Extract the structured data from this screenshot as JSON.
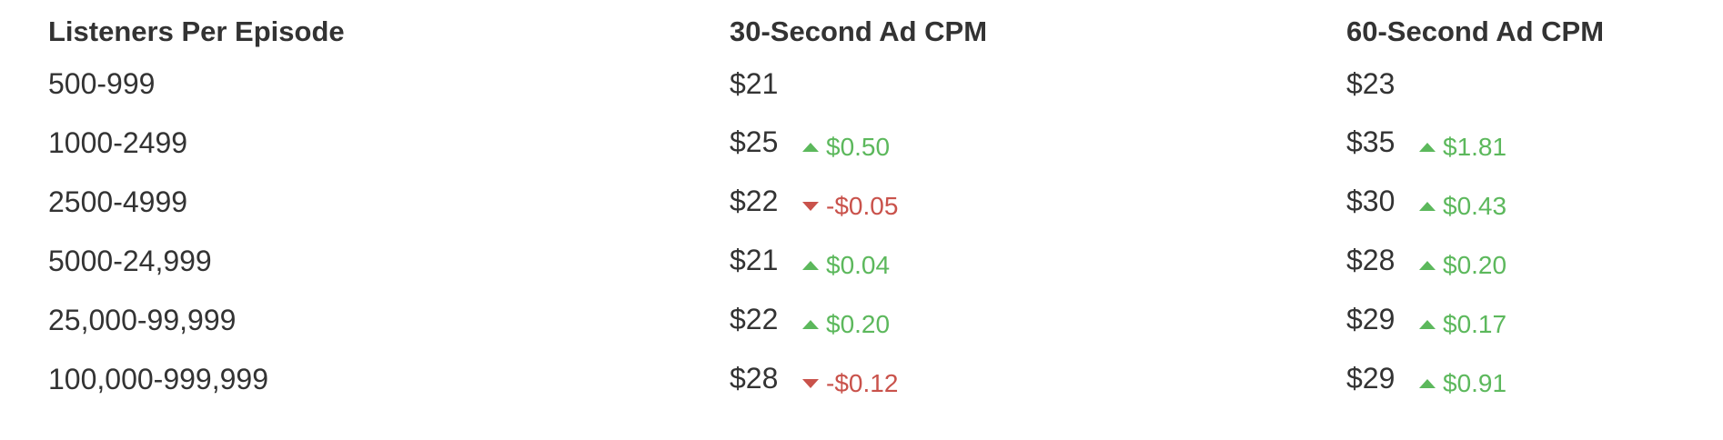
{
  "table": {
    "headers": [
      "Listeners Per Episode",
      "30-Second Ad CPM",
      "60-Second Ad CPM"
    ],
    "rows": [
      {
        "listeners": "500-999",
        "cpm30": "$21",
        "cpm30_change": "",
        "cpm30_dir": "",
        "cpm60": "$23",
        "cpm60_change": "",
        "cpm60_dir": ""
      },
      {
        "listeners": "1000-2499",
        "cpm30": "$25",
        "cpm30_change": "$0.50",
        "cpm30_dir": "up",
        "cpm60": "$35",
        "cpm60_change": "$1.81",
        "cpm60_dir": "up"
      },
      {
        "listeners": "2500-4999",
        "cpm30": "$22",
        "cpm30_change": "-$0.05",
        "cpm30_dir": "down",
        "cpm60": "$30",
        "cpm60_change": "$0.43",
        "cpm60_dir": "up"
      },
      {
        "listeners": "5000-24,999",
        "cpm30": "$21",
        "cpm30_change": "$0.04",
        "cpm30_dir": "up",
        "cpm60": "$28",
        "cpm60_change": "$0.20",
        "cpm60_dir": "up"
      },
      {
        "listeners": "25,000-99,999",
        "cpm30": "$22",
        "cpm30_change": "$0.20",
        "cpm30_dir": "up",
        "cpm60": "$29",
        "cpm60_change": "$0.17",
        "cpm60_dir": "up"
      },
      {
        "listeners": "100,000-999,999",
        "cpm30": "$28",
        "cpm30_change": "-$0.12",
        "cpm30_dir": "down",
        "cpm60": "$29",
        "cpm60_change": "$0.91",
        "cpm60_dir": "up"
      }
    ]
  },
  "colors": {
    "text": "#333333",
    "increase": "#5cb85c",
    "decrease": "#c9524b"
  },
  "icons": {
    "increase": "triangle-up-icon",
    "decrease": "triangle-down-icon"
  }
}
